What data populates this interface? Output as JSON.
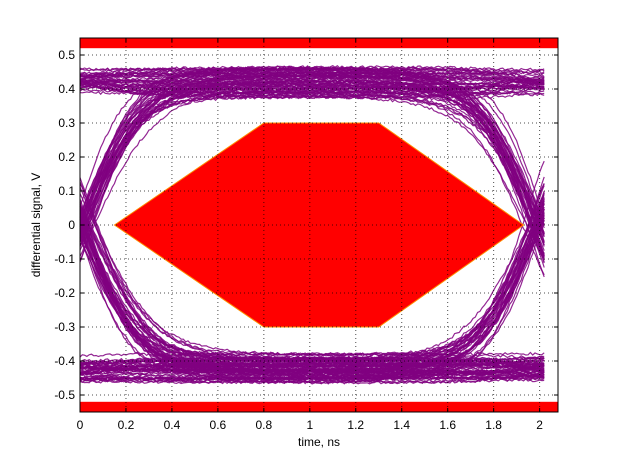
{
  "chart_data": {
    "type": "line",
    "subtype": "eye-diagram",
    "title": "",
    "xlabel": "time, ns",
    "ylabel": "differential signal, V",
    "xlim": [
      0,
      2.08
    ],
    "ylim": [
      -0.55,
      0.55
    ],
    "xticks": [
      0,
      0.2,
      0.4,
      0.6,
      0.8,
      1,
      1.2,
      1.4,
      1.6,
      1.8,
      2
    ],
    "xtick_labels": [
      "0",
      "0.2",
      "0.4",
      "0.6",
      "0.8",
      "1",
      "1.2",
      "1.4",
      "1.6",
      "1.8",
      "2"
    ],
    "yticks": [
      -0.5,
      -0.4,
      -0.3,
      -0.2,
      -0.1,
      0,
      0.1,
      0.2,
      0.3,
      0.4,
      0.5
    ],
    "ytick_labels": [
      "-0.5",
      "-0.4",
      "-0.3",
      "-0.2",
      "-0.1",
      "0",
      "0.1",
      "0.2",
      "0.3",
      "0.4",
      "0.5"
    ],
    "grid": true,
    "legend": "none",
    "eye": {
      "levels": [
        -0.42,
        0.42
      ],
      "level_spread": 0.045,
      "crossing_times": [
        0.02,
        1.98
      ],
      "x_end": 2.03,
      "color": "#800080"
    },
    "mask": {
      "polygon": [
        [
          0.15,
          0
        ],
        [
          0.8,
          0.3
        ],
        [
          1.3,
          0.3
        ],
        [
          1.93,
          0
        ],
        [
          1.3,
          -0.3
        ],
        [
          0.8,
          -0.3
        ]
      ],
      "fill": "#ff0000",
      "edge": "#ff8c00"
    },
    "limit_bands": [
      {
        "y_range": [
          0.52,
          0.55
        ],
        "fill": "#ff0000"
      },
      {
        "y_range": [
          -0.55,
          -0.52
        ],
        "fill": "#ff0000"
      }
    ]
  }
}
